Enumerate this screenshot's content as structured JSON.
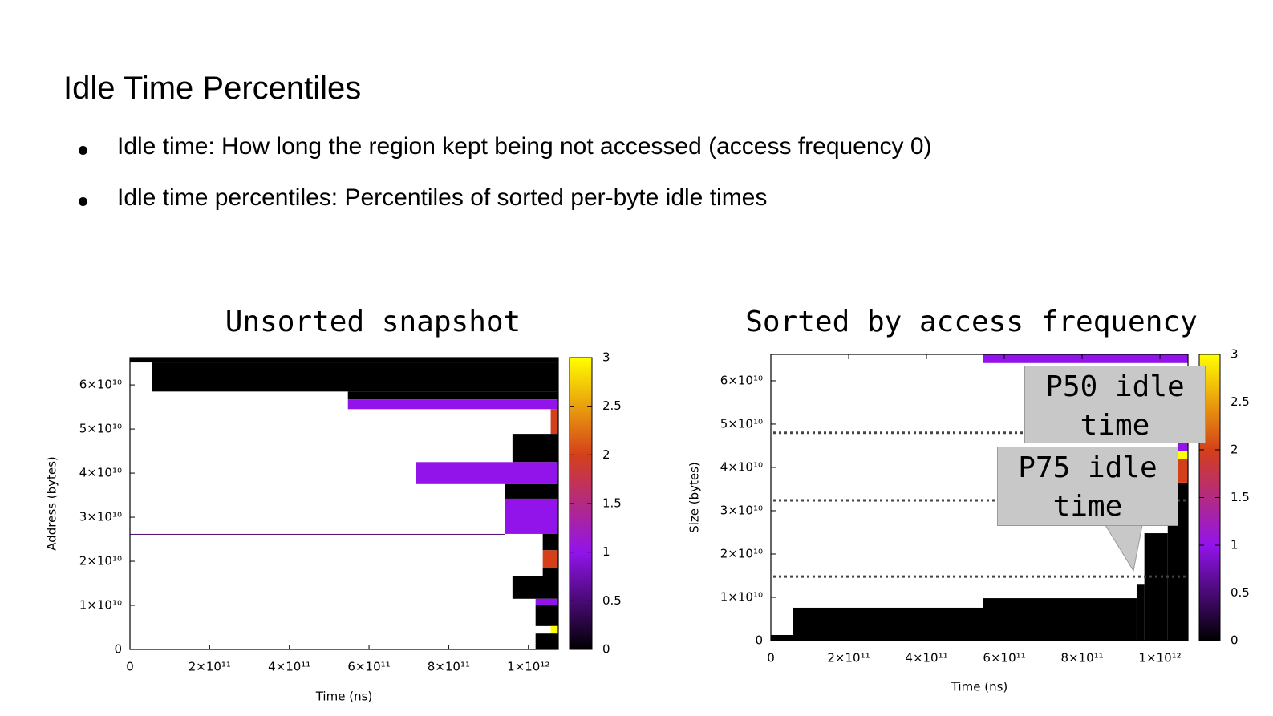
{
  "slide": {
    "title": "Idle Time Percentiles",
    "bullets": [
      "Idle time: How long the region kept being not accessed (access frequency 0)",
      "Idle time percentiles: Percentiles of sorted per-byte idle times"
    ]
  },
  "chart_data": [
    {
      "type": "heatmap",
      "title": "Unsorted snapshot",
      "x_label": "Time (ns)",
      "y_label": "Address (bytes)",
      "xlim": [
        0,
        1075000000000.0
      ],
      "ylim": [
        0,
        66200000000.0
      ],
      "xticks": [
        0,
        {
          "value": 200000000000.0,
          "label": "2×10¹¹"
        },
        {
          "value": 400000000000.0,
          "label": "4×10¹¹"
        },
        {
          "value": 600000000000.0,
          "label": "6×10¹¹"
        },
        {
          "value": 800000000000.0,
          "label": "8×10¹¹"
        },
        {
          "value": 1000000000000.0,
          "label": "1×10¹²"
        }
      ],
      "yticks": [
        0,
        {
          "value": 10000000000.0,
          "label": "1×10¹⁰"
        },
        {
          "value": 20000000000.0,
          "label": "2×10¹⁰"
        },
        {
          "value": 30000000000.0,
          "label": "3×10¹⁰"
        },
        {
          "value": 40000000000.0,
          "label": "4×10¹⁰"
        },
        {
          "value": 50000000000.0,
          "label": "5×10¹⁰"
        },
        {
          "value": 60000000000.0,
          "label": "6×10¹⁰"
        }
      ],
      "clim": [
        0,
        3
      ],
      "cticks": [
        0,
        0.5,
        1,
        1.5,
        2,
        2.5,
        3
      ],
      "colormap": [
        "#000000",
        "#9214ea",
        "#d4401a",
        "#ffff00"
      ],
      "cells": [
        {
          "x0": 0,
          "x1": 1075000000000.0,
          "y0": 65100000000.0,
          "y1": 66200000000.0,
          "value": 0
        },
        {
          "x0": 56000000000.0,
          "x1": 1075000000000.0,
          "y0": 58500000000.0,
          "y1": 65100000000.0,
          "value": 0
        },
        {
          "x0": 547000000000.0,
          "x1": 1075000000000.0,
          "y0": 56700000000.0,
          "y1": 58500000000.0,
          "value": 0
        },
        {
          "x0": 547000000000.0,
          "x1": 1075000000000.0,
          "y0": 54500000000.0,
          "y1": 56700000000.0,
          "value": 1
        },
        {
          "x0": 1056000000000.0,
          "x1": 1075000000000.0,
          "y0": 48900000000.0,
          "y1": 54500000000.0,
          "value": 2
        },
        {
          "x0": 960000000000.0,
          "x1": 1075000000000.0,
          "y0": 42500000000.0,
          "y1": 48900000000.0,
          "value": 0
        },
        {
          "x0": 718000000000.0,
          "x1": 1075000000000.0,
          "y0": 37500000000.0,
          "y1": 42500000000.0,
          "value": 1
        },
        {
          "x0": 942000000000.0,
          "x1": 1075000000000.0,
          "y0": 34200000000.0,
          "y1": 37500000000.0,
          "value": 0
        },
        {
          "x0": 942000000000.0,
          "x1": 1075000000000.0,
          "y0": 26200000000.0,
          "y1": 34200000000.0,
          "value": 1
        },
        {
          "x0": 0,
          "x1": 942000000000.0,
          "y0": 26100000000.0,
          "y1": 26200000000.0,
          "value": 0.5
        },
        {
          "x0": 1036000000000.0,
          "x1": 1075000000000.0,
          "y0": 22500000000.0,
          "y1": 26200000000.0,
          "value": 0
        },
        {
          "x0": 1036000000000.0,
          "x1": 1075000000000.0,
          "y0": 18500000000.0,
          "y1": 22500000000.0,
          "value": 2
        },
        {
          "x0": 1036000000000.0,
          "x1": 1075000000000.0,
          "y0": 16700000000.0,
          "y1": 18500000000.0,
          "value": 0
        },
        {
          "x0": 960000000000.0,
          "x1": 1075000000000.0,
          "y0": 11500000000.0,
          "y1": 16700000000.0,
          "value": 0
        },
        {
          "x0": 1018000000000.0,
          "x1": 1075000000000.0,
          "y0": 10000000000.0,
          "y1": 11500000000.0,
          "value": 1
        },
        {
          "x0": 1018000000000.0,
          "x1": 1075000000000.0,
          "y0": 5300000000.0,
          "y1": 10000000000.0,
          "value": 0
        },
        {
          "x0": 1056000000000.0,
          "x1": 1075000000000.0,
          "y0": 3600000000.0,
          "y1": 5300000000.0,
          "value": 3
        },
        {
          "x0": 1018000000000.0,
          "x1": 1075000000000.0,
          "y0": 0,
          "y1": 3600000000.0,
          "value": 0
        }
      ]
    },
    {
      "type": "heatmap",
      "title": "Sorted by access frequency",
      "x_label": "Time (ns)",
      "y_label": "Size (bytes)",
      "xlim": [
        0,
        1072000000000.0
      ],
      "ylim": [
        0,
        66100000000.0
      ],
      "xticks": [
        0,
        {
          "value": 200000000000.0,
          "label": "2×10¹¹"
        },
        {
          "value": 400000000000.0,
          "label": "4×10¹¹"
        },
        {
          "value": 600000000000.0,
          "label": "6×10¹¹"
        },
        {
          "value": 800000000000.0,
          "label": "8×10¹¹"
        },
        {
          "value": 1000000000000.0,
          "label": "1×10¹²"
        }
      ],
      "yticks": [
        0,
        {
          "value": 10000000000.0,
          "label": "1×10¹⁰"
        },
        {
          "value": 20000000000.0,
          "label": "2×10¹⁰"
        },
        {
          "value": 30000000000.0,
          "label": "3×10¹⁰"
        },
        {
          "value": 40000000000.0,
          "label": "4×10¹⁰"
        },
        {
          "value": 50000000000.0,
          "label": "5×10¹⁰"
        },
        {
          "value": 60000000000.0,
          "label": "6×10¹⁰"
        }
      ],
      "clim": [
        0,
        3
      ],
      "cticks": [
        0,
        0.5,
        1,
        1.5,
        2,
        2.5,
        3
      ],
      "colormap": [
        "#000000",
        "#9214ea",
        "#d4401a",
        "#ffff00"
      ],
      "cells": [
        {
          "x0": 0,
          "x1": 56000000000.0,
          "y0": 0,
          "y1": 1300000000.0,
          "value": 0
        },
        {
          "x0": 56000000000.0,
          "x1": 546000000000.0,
          "y0": 0,
          "y1": 7600000000.0,
          "value": 0
        },
        {
          "x0": 546000000000.0,
          "x1": 940000000000.0,
          "y0": 0,
          "y1": 9800000000.0,
          "value": 0
        },
        {
          "x0": 940000000000.0,
          "x1": 960000000000.0,
          "y0": 0,
          "y1": 13100000000.0,
          "value": 0
        },
        {
          "x0": 960000000000.0,
          "x1": 1020000000000.0,
          "y0": 0,
          "y1": 24800000000.0,
          "value": 0
        },
        {
          "x0": 1020000000000.0,
          "x1": 1072000000000.0,
          "y0": 0,
          "y1": 36500000000.0,
          "value": 0
        },
        {
          "x0": 1045000000000.0,
          "x1": 1072000000000.0,
          "y0": 36500000000.0,
          "y1": 42000000000.0,
          "value": 2
        },
        {
          "x0": 1045000000000.0,
          "x1": 1072000000000.0,
          "y0": 42000000000.0,
          "y1": 43700000000.0,
          "value": 3
        },
        {
          "x0": 1045000000000.0,
          "x1": 1072000000000.0,
          "y0": 43700000000.0,
          "y1": 45700000000.0,
          "value": 1
        },
        {
          "x0": 546000000000.0,
          "x1": 1072000000000.0,
          "y0": 64100000000.0,
          "y1": 66100000000.0,
          "value": 1
        }
      ],
      "hlines": [
        48000000000.0,
        32400000000.0,
        14800000000.0
      ],
      "annotations": [
        "P50 idle time",
        "P75 idle time"
      ]
    }
  ]
}
